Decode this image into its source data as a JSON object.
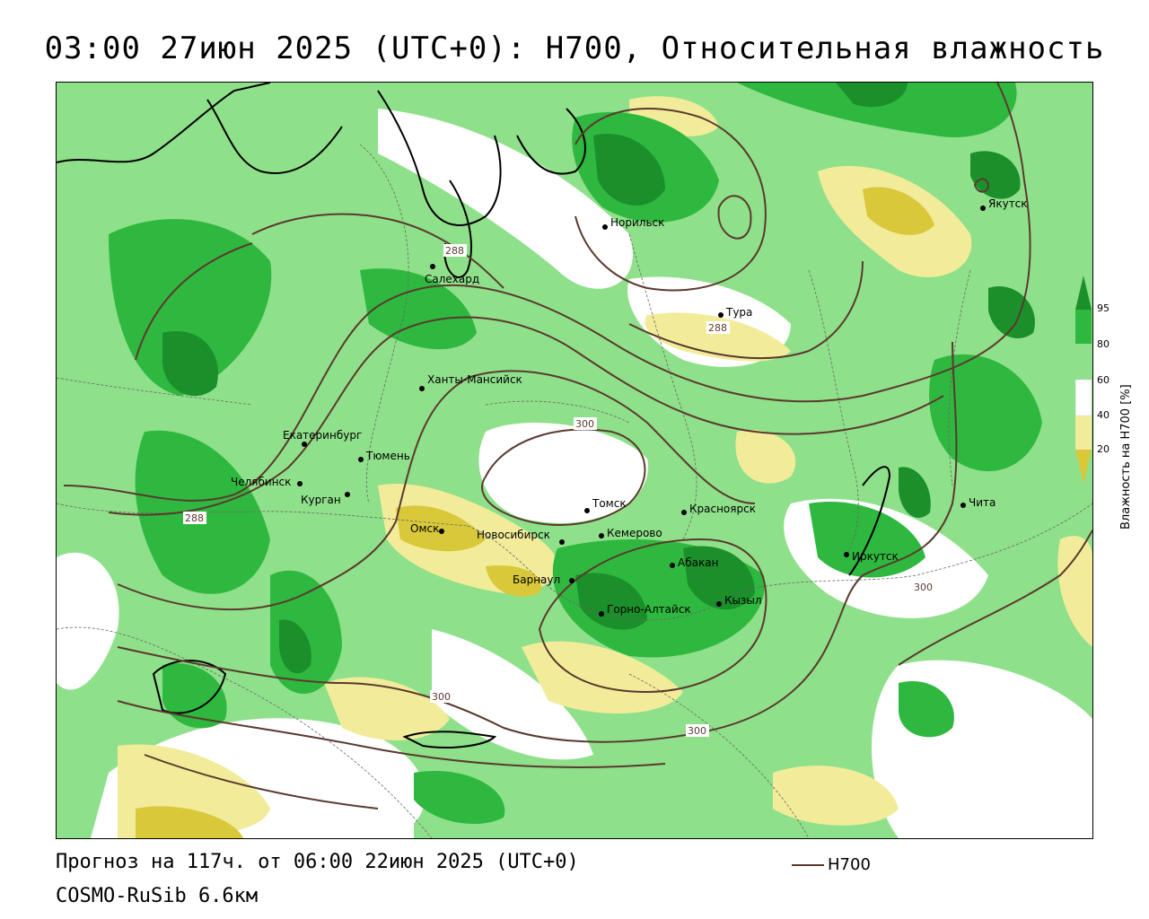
{
  "title": "03:00 27июн 2025 (UTC+0): H700, Относительная влажность",
  "footer": {
    "forecast": "Прогноз на 117ч. от 06:00 22июн 2025 (UTC+0)",
    "model": "COSMO-RuSib 6.6км",
    "line_legend": "H700"
  },
  "legend": {
    "title": "Влажность на H700 [%]",
    "ticks": [
      "95",
      "80",
      "60",
      "40",
      "20"
    ],
    "colors": {
      "c95": "#1a8f2a",
      "c80": "#2fb83f",
      "c60": "#8fe08a",
      "c40": "#ffffff",
      "c20": "#f2ec9a",
      "c0": "#d9c83a"
    }
  },
  "contour_color": "#5a3a2e",
  "contour_labels": [
    "288",
    "288",
    "288",
    "300",
    "300",
    "300",
    "300"
  ],
  "cities": [
    {
      "name": "Якутск"
    },
    {
      "name": "Норильск"
    },
    {
      "name": "Салехард"
    },
    {
      "name": "Тура"
    },
    {
      "name": "Ханты-Мансийск"
    },
    {
      "name": "Екатеринбург"
    },
    {
      "name": "Тюмень"
    },
    {
      "name": "Челябинск"
    },
    {
      "name": "Курган"
    },
    {
      "name": "Омск"
    },
    {
      "name": "Новосибирск"
    },
    {
      "name": "Томск"
    },
    {
      "name": "Кемерово"
    },
    {
      "name": "Красноярск"
    },
    {
      "name": "Барнаул"
    },
    {
      "name": "Абакан"
    },
    {
      "name": "Горно-Алтайск"
    },
    {
      "name": "Кызыл"
    },
    {
      "name": "Иркутск"
    },
    {
      "name": "Чита"
    }
  ]
}
